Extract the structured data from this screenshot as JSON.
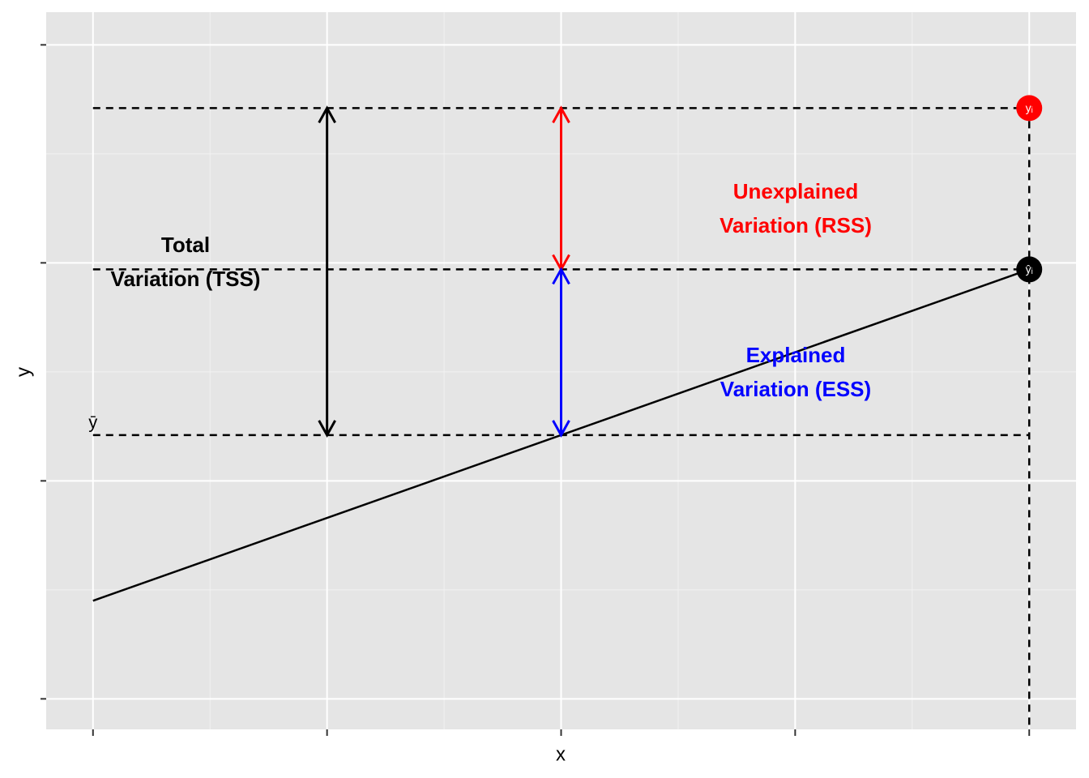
{
  "chart_data": {
    "type": "regression_decomposition",
    "x_label": "x",
    "y_label": "y",
    "xlim": [
      -0.2,
      4.2
    ],
    "ylim": [
      -0.14,
      3.15
    ],
    "xticks": [
      0,
      1,
      2,
      3,
      4
    ],
    "yticks": [
      0,
      1,
      2,
      3
    ],
    "grid": true,
    "x": [
      0,
      4
    ],
    "values": [
      0.45,
      1.97
    ],
    "line_color": "#000000",
    "mean": {
      "label": "ȳ",
      "y": 1.21
    },
    "points": [
      {
        "label": "yᵢ",
        "x": 4,
        "y": 2.71,
        "color": "#ff0000"
      },
      {
        "label": "ŷᵢ",
        "x": 4,
        "y": 1.97,
        "color": "#000000"
      }
    ],
    "arrows": [
      {
        "x": 1,
        "y0": 1.21,
        "y1": 2.71,
        "color": "#000000"
      },
      {
        "x": 2,
        "y0": 1.97,
        "y1": 2.71,
        "color": "#ff0000"
      },
      {
        "x": 2,
        "y0": 1.21,
        "y1": 1.97,
        "color": "#0000ff"
      }
    ],
    "annotations": [
      {
        "lines": [
          "Total",
          "Variation (TSS)"
        ],
        "color": "#000000"
      },
      {
        "lines": [
          "Unexplained",
          "Variation (RSS)"
        ],
        "color": "#ff0000"
      },
      {
        "lines": [
          "Explained",
          "Variation (ESS)"
        ],
        "color": "#0000ff"
      }
    ]
  }
}
